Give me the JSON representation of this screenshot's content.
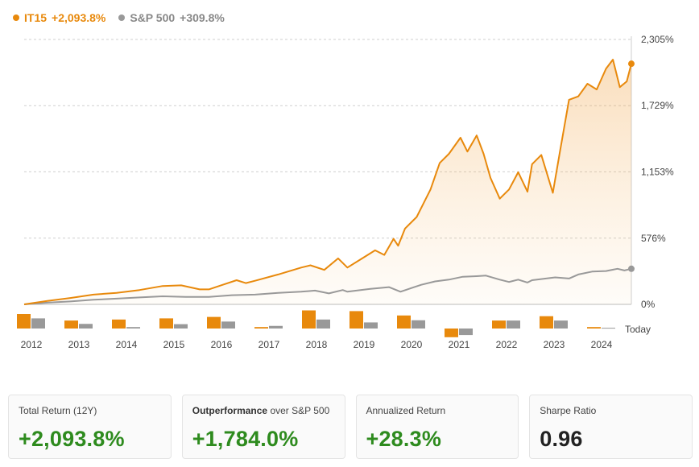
{
  "legend": [
    {
      "name": "IT15",
      "value": "+2,093.8%",
      "color": "#e8890c"
    },
    {
      "name": "S&P 500",
      "value": "+309.8%",
      "color": "#999999"
    }
  ],
  "chart_data": {
    "type": "line",
    "y_axis": {
      "min": 0,
      "max": 2305,
      "unit": "%",
      "tick_labels": [
        "2,305%",
        "1,729%",
        "1,153%",
        "576%",
        "0%"
      ],
      "ticks": [
        2305,
        1729,
        1153,
        576,
        0
      ]
    },
    "x_axis": {
      "tick_labels": [
        "2012",
        "2013",
        "2014",
        "2015",
        "2016",
        "2017",
        "2018",
        "2019",
        "2020",
        "2021",
        "2022",
        "2023",
        "2024",
        "Today"
      ]
    },
    "series": [
      {
        "name": "IT15",
        "color": "#e8890c",
        "final_value": 2093.8,
        "points": [
          [
            2012.0,
            0
          ],
          [
            2012.5,
            30
          ],
          [
            2013.0,
            55
          ],
          [
            2013.5,
            85
          ],
          [
            2014.0,
            100
          ],
          [
            2014.5,
            125
          ],
          [
            2015.0,
            160
          ],
          [
            2015.4,
            165
          ],
          [
            2015.8,
            130
          ],
          [
            2016.0,
            130
          ],
          [
            2016.3,
            170
          ],
          [
            2016.6,
            210
          ],
          [
            2016.8,
            185
          ],
          [
            2017.0,
            205
          ],
          [
            2017.5,
            260
          ],
          [
            2018.0,
            320
          ],
          [
            2018.2,
            340
          ],
          [
            2018.5,
            300
          ],
          [
            2018.8,
            400
          ],
          [
            2019.0,
            320
          ],
          [
            2019.3,
            395
          ],
          [
            2019.6,
            470
          ],
          [
            2019.8,
            430
          ],
          [
            2020.0,
            570
          ],
          [
            2020.1,
            510
          ],
          [
            2020.25,
            660
          ],
          [
            2020.5,
            760
          ],
          [
            2020.8,
            1000
          ],
          [
            2021.0,
            1230
          ],
          [
            2021.2,
            1310
          ],
          [
            2021.45,
            1450
          ],
          [
            2021.6,
            1330
          ],
          [
            2021.8,
            1470
          ],
          [
            2021.95,
            1310
          ],
          [
            2022.1,
            1100
          ],
          [
            2022.3,
            920
          ],
          [
            2022.5,
            1000
          ],
          [
            2022.7,
            1150
          ],
          [
            2022.9,
            980
          ],
          [
            2023.0,
            1220
          ],
          [
            2023.2,
            1300
          ],
          [
            2023.45,
            970
          ],
          [
            2023.6,
            1320
          ],
          [
            2023.8,
            1780
          ],
          [
            2024.0,
            1810
          ],
          [
            2024.2,
            1920
          ],
          [
            2024.4,
            1870
          ],
          [
            2024.6,
            2050
          ],
          [
            2024.75,
            2130
          ],
          [
            2024.9,
            1890
          ],
          [
            2025.05,
            1940
          ],
          [
            2025.15,
            2093.8
          ]
        ]
      },
      {
        "name": "S&P 500",
        "color": "#999999",
        "final_value": 309.8,
        "points": [
          [
            2012.0,
            0
          ],
          [
            2012.5,
            15
          ],
          [
            2013.0,
            25
          ],
          [
            2013.5,
            40
          ],
          [
            2014.0,
            50
          ],
          [
            2014.5,
            60
          ],
          [
            2015.0,
            70
          ],
          [
            2015.5,
            65
          ],
          [
            2016.0,
            65
          ],
          [
            2016.5,
            80
          ],
          [
            2017.0,
            85
          ],
          [
            2017.5,
            100
          ],
          [
            2018.0,
            110
          ],
          [
            2018.3,
            120
          ],
          [
            2018.6,
            95
          ],
          [
            2018.9,
            125
          ],
          [
            2019.0,
            110
          ],
          [
            2019.5,
            135
          ],
          [
            2019.9,
            150
          ],
          [
            2020.15,
            110
          ],
          [
            2020.3,
            130
          ],
          [
            2020.6,
            170
          ],
          [
            2020.9,
            200
          ],
          [
            2021.2,
            215
          ],
          [
            2021.5,
            240
          ],
          [
            2021.8,
            245
          ],
          [
            2022.0,
            250
          ],
          [
            2022.3,
            215
          ],
          [
            2022.5,
            195
          ],
          [
            2022.7,
            215
          ],
          [
            2022.9,
            190
          ],
          [
            2023.0,
            210
          ],
          [
            2023.5,
            235
          ],
          [
            2023.8,
            225
          ],
          [
            2024.0,
            260
          ],
          [
            2024.3,
            285
          ],
          [
            2024.6,
            290
          ],
          [
            2024.85,
            310
          ],
          [
            2025.0,
            295
          ],
          [
            2025.15,
            309.8
          ]
        ]
      }
    ],
    "annual_returns": {
      "IT15": [
        1.0,
        0.55,
        0.62,
        0.7,
        0.8,
        0.1,
        1.25,
        1.2,
        0.9,
        -0.6,
        0.55,
        0.85,
        0.1
      ],
      "S&P 500": [
        0.7,
        0.32,
        0.1,
        0.3,
        0.48,
        0.18,
        0.62,
        0.42,
        0.57,
        -0.45,
        0.55,
        0.55,
        0.05
      ]
    }
  },
  "cards": [
    {
      "label": "Total Return (12Y)",
      "label_bold": "",
      "label_suffix": "",
      "value": "+2,093.8%"
    },
    {
      "label": "",
      "label_bold": "Outperformance",
      "label_suffix": " over S&P 500",
      "value": "+1,784.0%"
    },
    {
      "label": "Annualized Return",
      "label_bold": "",
      "label_suffix": "",
      "value": "+28.3%"
    },
    {
      "label": "Sharpe Ratio",
      "label_bold": "",
      "label_suffix": "",
      "value": "0.96"
    }
  ]
}
